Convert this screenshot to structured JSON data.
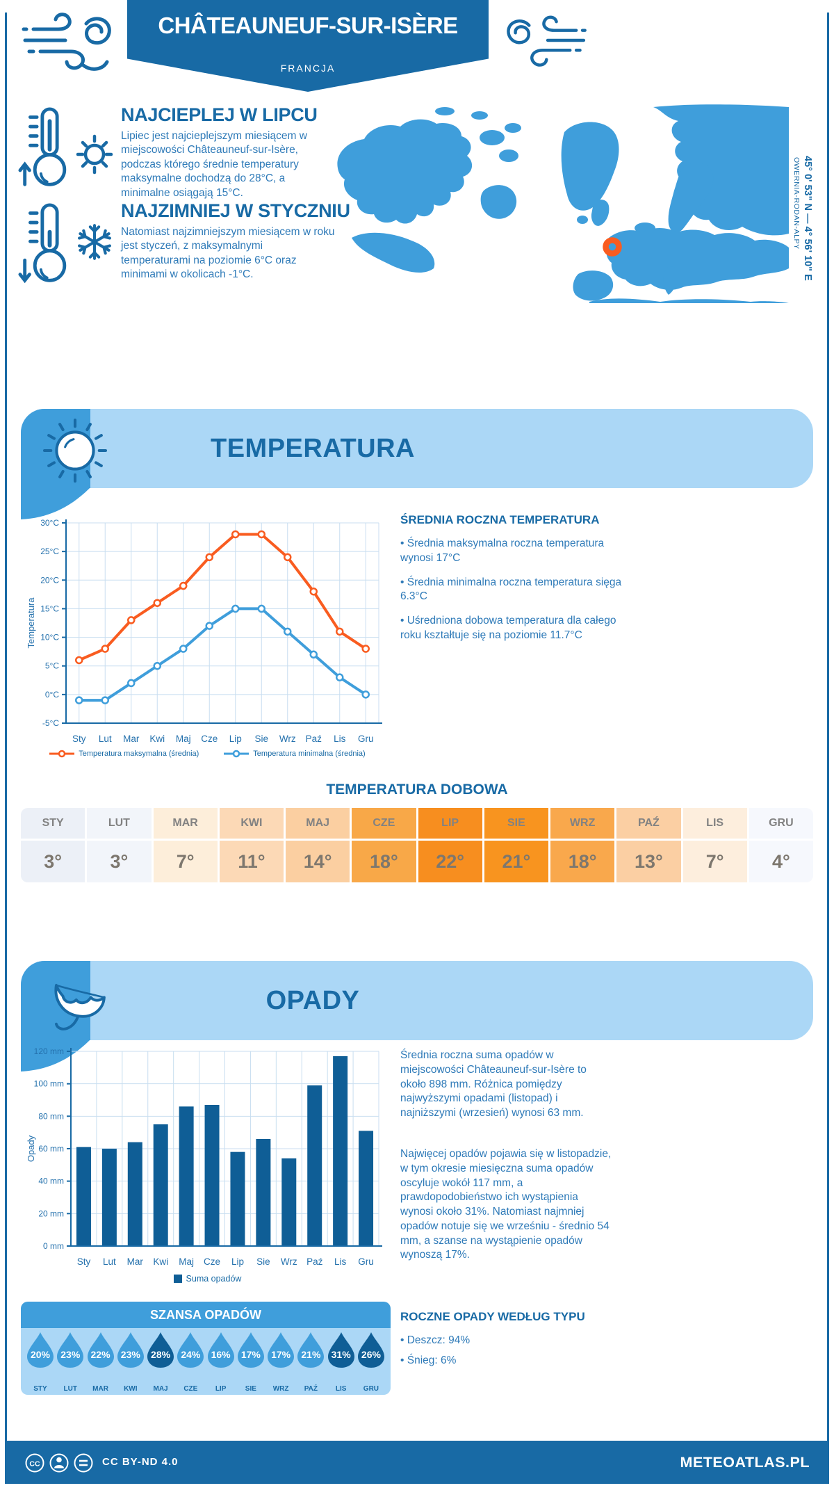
{
  "header": {
    "title": "CHÂTEAUNEUF-SUR-ISÈRE",
    "country": "FRANCJA"
  },
  "location": {
    "coordinates": "45° 0' 53\" N — 4° 56' 10\" E",
    "region": "OWERNIA-RODAN-ALPY"
  },
  "highlights": {
    "warm": {
      "title": "NAJCIEPLEJ W LIPCU",
      "text": "Lipiec jest najcieplejszym miesiącem w miejscowości Châteauneuf-sur-Isère, podczas którego średnie temperatury maksymalne dochodzą do 28°C, a minimalne osiągają 15°C."
    },
    "cold": {
      "title": "NAJZIMNIEJ W STYCZNIU",
      "text": "Natomiast najzimniejszym miesiącem w roku jest styczeń, z maksymalnymi temperaturami na poziomie 6°C oraz minimami w okolicach -1°C."
    }
  },
  "temperature": {
    "banner_title": "TEMPERATURA",
    "summary_title": "ŚREDNIA ROCZNA TEMPERATURA",
    "bullets": [
      "Średnia maksymalna roczna temperatura wynosi 17°C",
      "Średnia minimalna roczna temperatura sięga 6.3°C",
      "Uśredniona dobowa temperatura dla całego roku kształtuje się na poziomie 11.7°C"
    ],
    "daily_title": "TEMPERATURA DOBOWA"
  },
  "precipitation": {
    "banner_title": "OPADY",
    "para1": "Średnia roczna suma opadów w miejscowości Châteauneuf-sur-Isère to około 898 mm. Różnica pomiędzy najwyższymi opadami (listopad) i najniższymi (wrzesień) wynosi 63 mm.",
    "para2": "Najwięcej opadów pojawia się w listopadzie, w tym okresie miesięczna suma opadów oscyluje wokół 117 mm, a prawdopodobieństwo ich wystąpienia wynosi około 31%. Natomiast najmniej opadów notuje się we wrześniu - średnio 54 mm, a szanse na wystąpienie opadów wynoszą 17%.",
    "chance_title": "SZANSA OPADÓW",
    "type_title": "ROCZNE OPADY WEDŁUG TYPU",
    "type_bullets": [
      "Deszcz: 94%",
      "Śnieg: 6%"
    ]
  },
  "footer": {
    "license": "CC BY-ND 4.0",
    "brand": "METEOATLAS.PL"
  },
  "colors": {
    "dark_blue": "#186aa5",
    "mid_blue": "#3f9edb",
    "light_blue": "#abd7f6",
    "navy": "#0f5e96",
    "orange": "#f95c20",
    "grid": "#c8def0"
  },
  "chart_data": [
    {
      "type": "line",
      "title": "TEMPERATURA",
      "categories": [
        "Sty",
        "Lut",
        "Mar",
        "Kwi",
        "Maj",
        "Cze",
        "Lip",
        "Sie",
        "Wrz",
        "Paź",
        "Lis",
        "Gru"
      ],
      "series": [
        {
          "name": "Temperatura maksymalna (średnia)",
          "color": "#f95c20",
          "values": [
            6,
            8,
            13,
            16,
            19,
            24,
            28,
            28,
            24,
            18,
            11,
            8
          ]
        },
        {
          "name": "Temperatura minimalna (średnia)",
          "color": "#3f9edb",
          "values": [
            -1,
            -1,
            2,
            5,
            8,
            12,
            15,
            15,
            11,
            7,
            3,
            0
          ]
        }
      ],
      "ylabel": "Temperatura",
      "ylim": [
        -5,
        30
      ],
      "ytick_step": 5,
      "ytick_suffix": "°C",
      "grid": true
    },
    {
      "type": "table",
      "title": "TEMPERATURA DOBOWA",
      "categories": [
        "STY",
        "LUT",
        "MAR",
        "KWI",
        "MAJ",
        "CZE",
        "LIP",
        "SIE",
        "WRZ",
        "PAŹ",
        "LIS",
        "GRU"
      ],
      "values": [
        "3°",
        "3°",
        "7°",
        "11°",
        "14°",
        "18°",
        "22°",
        "21°",
        "18°",
        "13°",
        "7°",
        "4°"
      ],
      "cell_colors": [
        "#ecf0f7",
        "#f2f5fa",
        "#fdeeda",
        "#fcd9b6",
        "#fbcfa1",
        "#f8a848",
        "#f78e1f",
        "#f8941f",
        "#f9a84c",
        "#fbcfa3",
        "#fdeedd",
        "#f6f8fd"
      ]
    },
    {
      "type": "bar",
      "title": "OPADY",
      "categories": [
        "Sty",
        "Lut",
        "Mar",
        "Kwi",
        "Maj",
        "Cze",
        "Lip",
        "Sie",
        "Wrz",
        "Paź",
        "Lis",
        "Gru"
      ],
      "values": [
        61,
        60,
        64,
        75,
        86,
        87,
        58,
        66,
        54,
        99,
        117,
        71
      ],
      "ylabel": "Opady",
      "ylim": [
        0,
        120
      ],
      "ytick_step": 20,
      "ytick_suffix": " mm",
      "legend": "Suma opadów",
      "bar_color": "#0f5e96",
      "grid": true
    },
    {
      "type": "pictogram",
      "title": "SZANSA OPADÓW",
      "categories": [
        "STY",
        "LUT",
        "MAR",
        "KWI",
        "MAJ",
        "CZE",
        "LIP",
        "SIE",
        "WRZ",
        "PAŹ",
        "LIS",
        "GRU"
      ],
      "values": [
        20,
        23,
        22,
        23,
        28,
        24,
        16,
        17,
        17,
        21,
        31,
        26
      ],
      "unit": "%",
      "drop_colors": [
        "#3f9edb",
        "#3f9edb",
        "#3f9edb",
        "#3f9edb",
        "#0f5e96",
        "#3f9edb",
        "#3f9edb",
        "#3f9edb",
        "#3f9edb",
        "#3f9edb",
        "#0f5e96",
        "#0f5e96"
      ]
    }
  ]
}
